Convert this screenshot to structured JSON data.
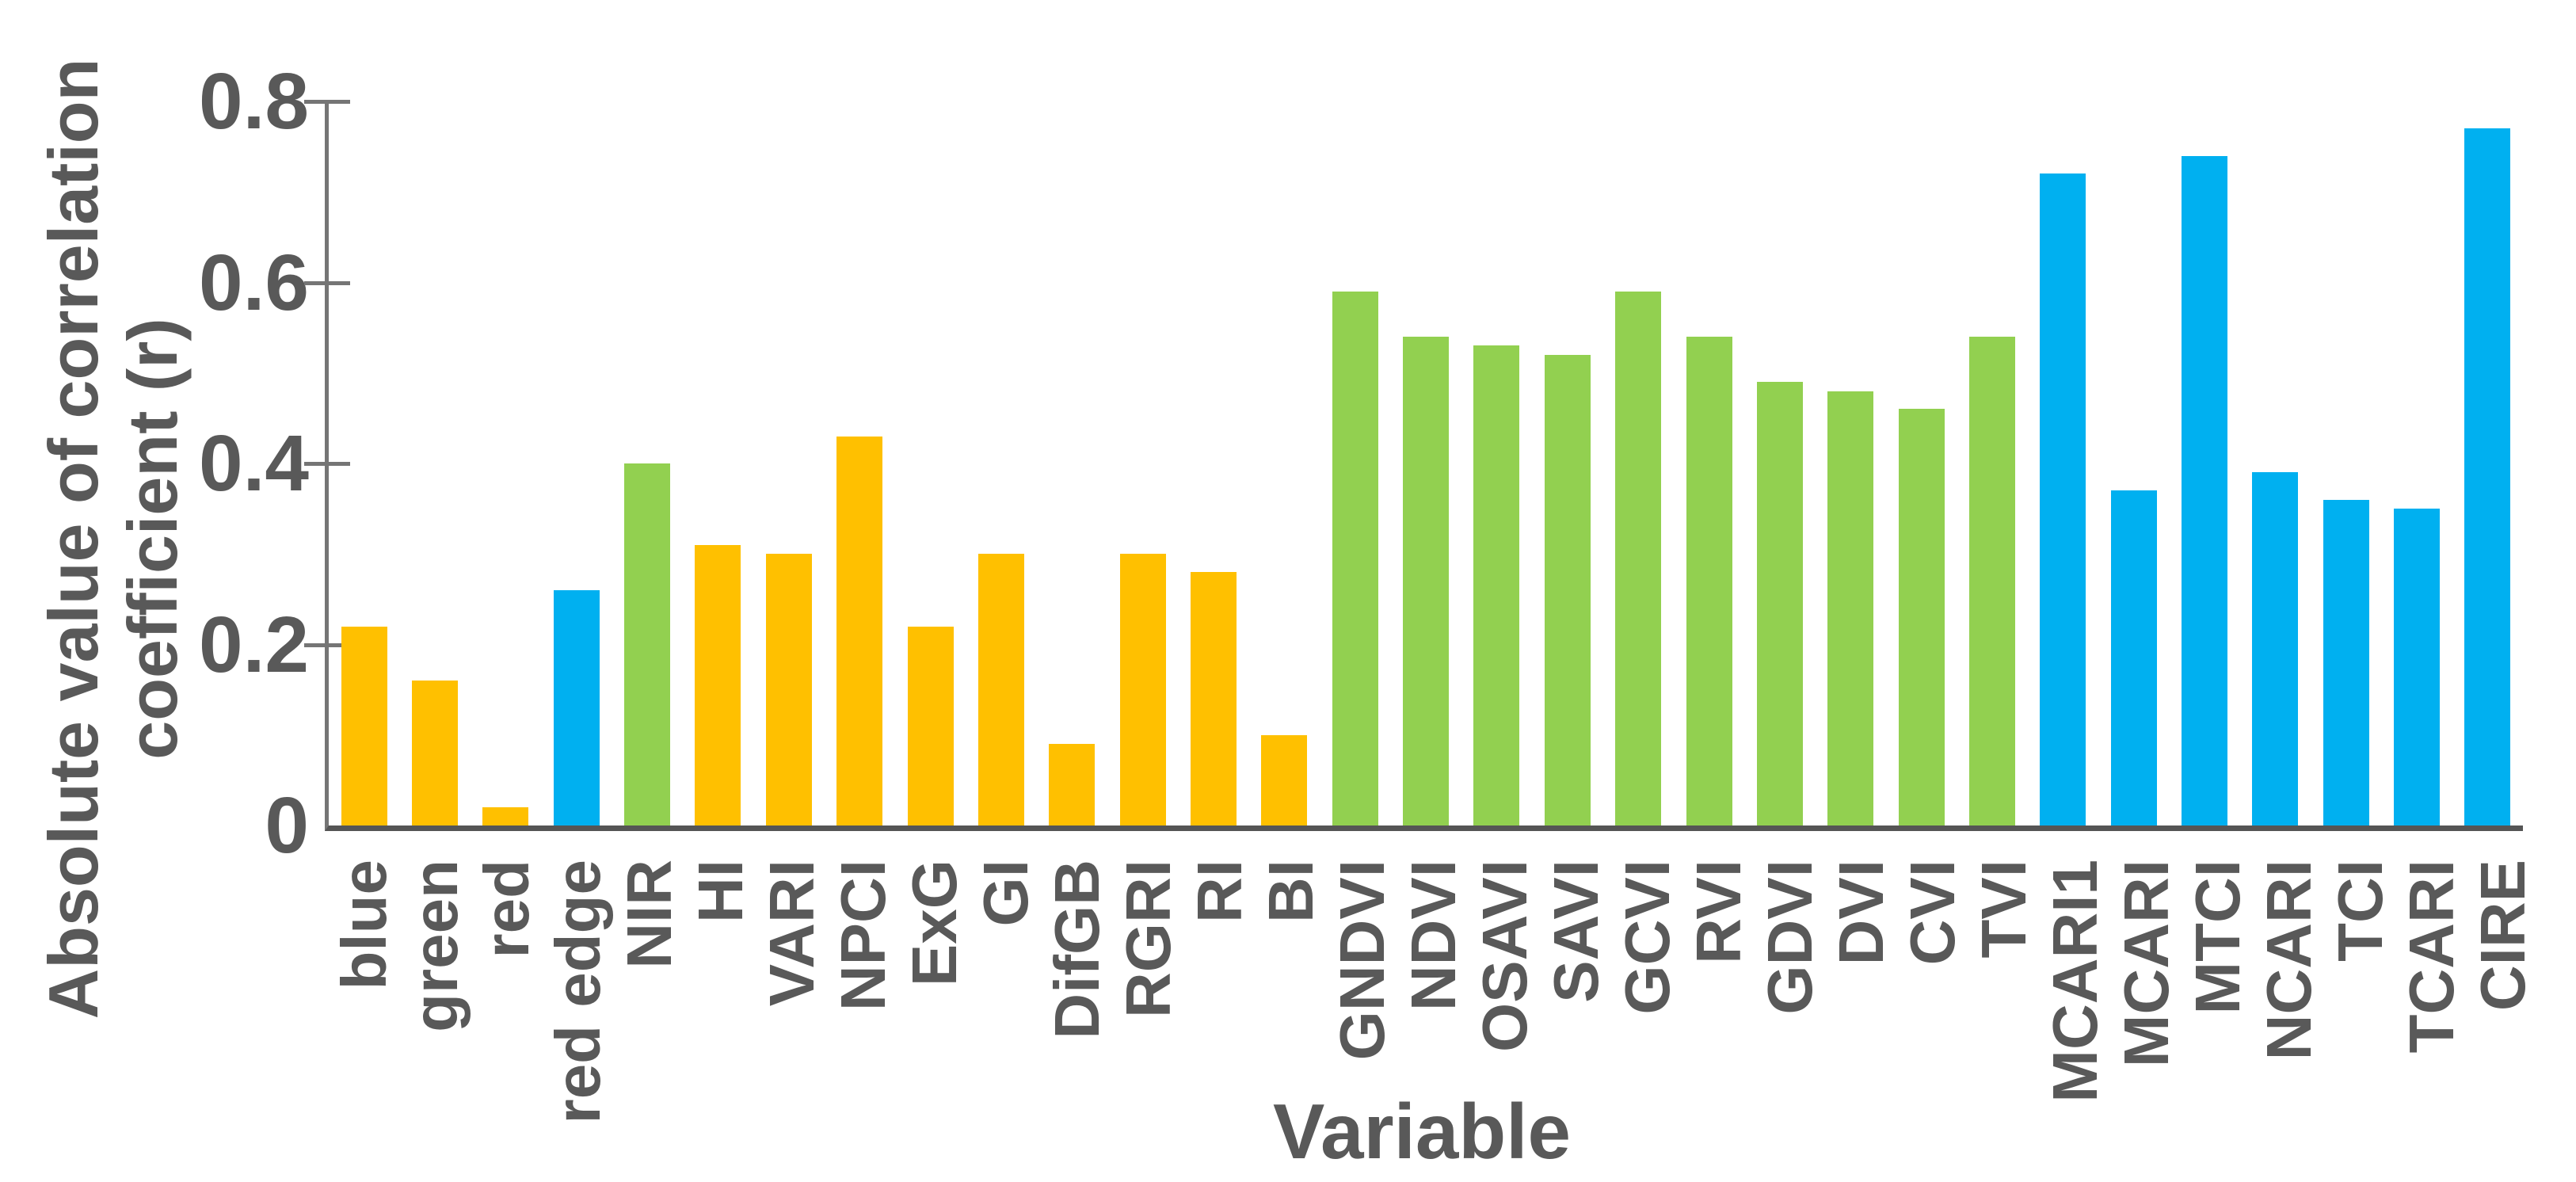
{
  "chart_data": {
    "type": "bar",
    "title": "",
    "xlabel": "Variable",
    "ylabel": "Absolute value of correlation coefficient (r)",
    "ylabel_lines": [
      "Absolute value of correlation",
      "coefficient (r)"
    ],
    "categories": [
      "blue",
      "green",
      "red",
      "red edge",
      "NIR",
      "HI",
      "VARI",
      "NPCI",
      "ExG",
      "GI",
      "DifGB",
      "RGRI",
      "RI",
      "BI",
      "GNDVI",
      "NDVI",
      "OSAVI",
      "SAVI",
      "GCVI",
      "RVI",
      "GDVI",
      "DVI",
      "CVI",
      "TVI",
      "MCARI1",
      "MCARI",
      "MTCI",
      "NCARI",
      "TCI",
      "TCARI",
      "CIRE"
    ],
    "values": [
      0.22,
      0.16,
      0.02,
      0.26,
      0.4,
      0.31,
      0.3,
      0.43,
      0.22,
      0.3,
      0.09,
      0.3,
      0.28,
      0.1,
      0.59,
      0.54,
      0.53,
      0.52,
      0.59,
      0.54,
      0.49,
      0.48,
      0.46,
      0.54,
      0.72,
      0.37,
      0.74,
      0.39,
      0.36,
      0.35,
      0.77
    ],
    "bar_colors": [
      "#FFC000",
      "#FFC000",
      "#FFC000",
      "#00B0F0",
      "#92D050",
      "#FFC000",
      "#FFC000",
      "#FFC000",
      "#FFC000",
      "#FFC000",
      "#FFC000",
      "#FFC000",
      "#FFC000",
      "#FFC000",
      "#92D050",
      "#92D050",
      "#92D050",
      "#92D050",
      "#92D050",
      "#92D050",
      "#92D050",
      "#92D050",
      "#92D050",
      "#92D050",
      "#00B0F0",
      "#00B0F0",
      "#00B0F0",
      "#00B0F0",
      "#00B0F0",
      "#00B0F0",
      "#00B0F0"
    ],
    "color_palette": {
      "yellow": "#FFC000",
      "green": "#92D050",
      "blue": "#00B0F0"
    },
    "ytick_labels": [
      "0",
      "0.2",
      "0.4",
      "0.6",
      "0.8"
    ],
    "ytick_values": [
      0,
      0.2,
      0.4,
      0.6,
      0.8
    ],
    "ylim": [
      0,
      0.8
    ],
    "grid": false,
    "legend": null,
    "text_color": "#595959"
  }
}
